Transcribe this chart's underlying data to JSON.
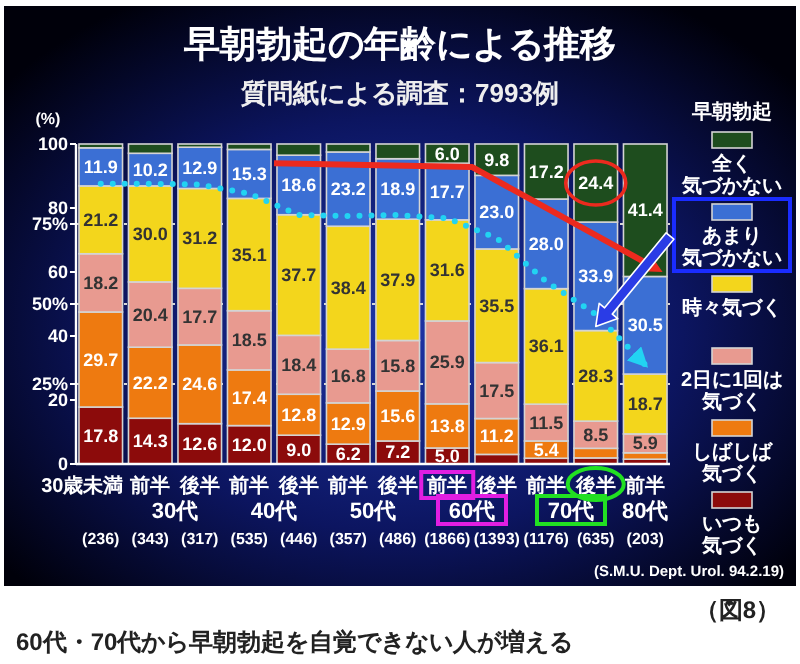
{
  "chart_data": {
    "type": "bar",
    "stacked": true,
    "title": "早朝勃起の年齢による推移",
    "subtitle": "質問紙による調査：7993例",
    "ylabel": "(%)",
    "legend_title": "早朝勃起",
    "legend": "right",
    "categories": [
      "30歳未満",
      "前半",
      "後半",
      "前半",
      "後半",
      "前半",
      "後半",
      "前半",
      "後半",
      "前半",
      "後半",
      "前半"
    ],
    "ylim": [
      0,
      100
    ],
    "yticks": [
      0,
      20,
      {
        "value": 25,
        "label": "25%"
      },
      40,
      {
        "value": 50,
        "label": "50%"
      },
      60,
      {
        "value": 75,
        "label": "75%"
      },
      80,
      100
    ],
    "ref_lines": [
      {
        "axis": "y",
        "value": 25,
        "color": "#d8d8d8",
        "line_style": "dotted"
      },
      {
        "axis": "y",
        "value": 50,
        "color": "#d8d8d8",
        "line_style": "dotted"
      },
      {
        "axis": "y",
        "value": 75,
        "color": "#d8d8d8",
        "line_style": "dotted"
      }
    ],
    "series": [
      {
        "name": "いつも気づく",
        "color": "#8c0b0b",
        "values": [
          17.8,
          14.3,
          12.6,
          12.0,
          9.0,
          6.2,
          7.2,
          5.0,
          3.0,
          1.8,
          1.9,
          1.5
        ],
        "value_labels": [
          "17.8",
          "14.3",
          "12.6",
          "12.0",
          "9.0",
          "6.2",
          "7.2",
          "5.0",
          null,
          null,
          null,
          null
        ]
      },
      {
        "name": "しばしば気づく",
        "color": "#ee7a10",
        "values": [
          29.7,
          22.2,
          24.6,
          17.4,
          12.8,
          12.9,
          15.6,
          13.8,
          11.2,
          5.4,
          3.0,
          2.0
        ],
        "value_labels": [
          "29.7",
          "22.2",
          "24.6",
          "17.4",
          "12.8",
          "12.9",
          "15.6",
          "13.8",
          "11.2",
          "5.4",
          null,
          null
        ]
      },
      {
        "name": "2日に1回は気づく",
        "color": "#e89a90",
        "values": [
          18.2,
          20.4,
          17.7,
          18.5,
          18.4,
          16.8,
          15.8,
          25.9,
          17.5,
          11.5,
          8.5,
          5.9
        ],
        "value_labels": [
          "18.2",
          "20.4",
          "17.7",
          "18.5",
          "18.4",
          "16.8",
          "15.8",
          "25.9",
          "17.5",
          "11.5",
          "8.5",
          "5.9"
        ]
      },
      {
        "name": "時々気づく",
        "color": "#f3d61c",
        "values": [
          21.2,
          30.0,
          31.2,
          35.1,
          37.7,
          38.4,
          37.9,
          31.6,
          35.5,
          36.1,
          28.3,
          18.7
        ],
        "value_labels": [
          "21.2",
          "30.0",
          "31.2",
          "35.1",
          "37.7",
          "38.4",
          "37.9",
          "31.6",
          "35.5",
          "36.1",
          "28.3",
          "18.7"
        ]
      },
      {
        "name": "あまり気づかない",
        "color": "#3b6fd4",
        "values": [
          11.9,
          10.2,
          12.9,
          15.3,
          18.6,
          23.2,
          18.9,
          17.7,
          23.0,
          28.0,
          33.9,
          30.5
        ],
        "value_labels": [
          "11.9",
          "10.2",
          "12.9",
          "15.3",
          "18.6",
          "23.2",
          "18.9",
          "17.7",
          "23.0",
          "28.0",
          "33.9",
          "30.5"
        ]
      },
      {
        "name": "全く気づかない",
        "color": "#1e4d1e",
        "values": [
          1.2,
          2.9,
          1.0,
          1.7,
          3.5,
          2.5,
          4.6,
          6.0,
          9.8,
          17.2,
          24.4,
          41.4
        ],
        "value_labels": [
          null,
          null,
          null,
          null,
          null,
          null,
          null,
          "6.0",
          "9.8",
          "17.2",
          "24.4",
          "41.4"
        ]
      },
      {
        "type": "line",
        "color": "#22d3f2",
        "line_style": "dotted",
        "values": [
          87.6,
          87.6,
          87.3,
          84.5,
          77.8,
          77.5,
          77.8,
          76.8,
          70.6,
          57.0,
          46.8,
          31.0
        ]
      }
    ],
    "annotations": [
      "30代",
      "40代",
      "50代",
      "60代",
      "70代",
      "80代",
      "(236)",
      "(343)",
      "(317)",
      "(535)",
      "(446)",
      "(357)",
      "(486)",
      "(1866)",
      "(1393)",
      "(1176)",
      "(635)",
      "(203)",
      "(S.M.U. Dept. Urol. 94.2.19)",
      "（図8）",
      "60代・70代から早朝勃起を自覚できない人が増える"
    ]
  }
}
